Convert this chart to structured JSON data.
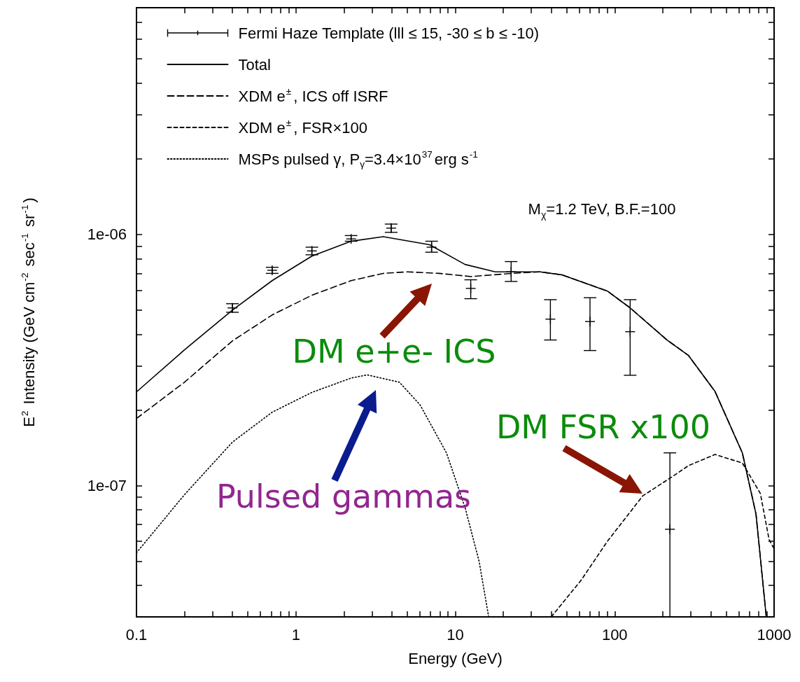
{
  "chart_data": {
    "type": "line",
    "xlabel": "Energy (GeV)",
    "ylabel": "E$^{2}$ Intensity (GeV cm$^{-2}$ sec$^{-1}$ sr$^{-1}$)",
    "log": "xy",
    "grid": false,
    "legend": "top left",
    "xlim": [
      0.1,
      1000
    ],
    "xticks": [
      0.1,
      {
        "value": 0.2,
        "label": null
      },
      {
        "value": 0.3,
        "label": null
      },
      {
        "value": 0.4,
        "label": null
      },
      {
        "value": 0.5,
        "label": null
      },
      {
        "value": 0.6,
        "label": null
      },
      {
        "value": 0.7,
        "label": null
      },
      {
        "value": 0.8,
        "label": null
      },
      {
        "value": 0.9,
        "label": null
      },
      1,
      {
        "value": 2,
        "label": null
      },
      {
        "value": 3,
        "label": null
      },
      {
        "value": 4,
        "label": null
      },
      {
        "value": 5,
        "label": null
      },
      {
        "value": 6,
        "label": null
      },
      {
        "value": 7,
        "label": null
      },
      {
        "value": 8,
        "label": null
      },
      {
        "value": 9,
        "label": null
      },
      10,
      {
        "value": 20,
        "label": null
      },
      {
        "value": 30,
        "label": null
      },
      {
        "value": 40,
        "label": null
      },
      {
        "value": 50,
        "label": null
      },
      {
        "value": 60,
        "label": null
      },
      {
        "value": 70,
        "label": null
      },
      {
        "value": 80,
        "label": null
      },
      {
        "value": 90,
        "label": null
      },
      100,
      {
        "value": 200,
        "label": null
      },
      {
        "value": 300,
        "label": null
      },
      {
        "value": 400,
        "label": null
      },
      {
        "value": 500,
        "label": null
      },
      {
        "value": 600,
        "label": null
      },
      {
        "value": 700,
        "label": null
      },
      {
        "value": 800,
        "label": null
      },
      {
        "value": 900,
        "label": null
      },
      1000
    ],
    "ylim": [
      3e-08,
      8e-06
    ],
    "yticks": [
      {
        "value": 4e-08,
        "label": null
      },
      {
        "value": 5e-08,
        "label": null
      },
      {
        "value": 6e-08,
        "label": null
      },
      {
        "value": 7e-08,
        "label": null
      },
      {
        "value": 8e-08,
        "label": null
      },
      {
        "value": 9e-08,
        "label": null
      },
      {
        "value": 1e-07,
        "label": "1e-07"
      },
      {
        "value": 2e-07,
        "label": null
      },
      {
        "value": 3e-07,
        "label": null
      },
      {
        "value": 4e-07,
        "label": null
      },
      {
        "value": 5e-07,
        "label": null
      },
      {
        "value": 6e-07,
        "label": null
      },
      {
        "value": 7e-07,
        "label": null
      },
      {
        "value": 8e-07,
        "label": null
      },
      {
        "value": 9e-07,
        "label": null
      },
      {
        "value": 1e-06,
        "label": "1e-06"
      },
      {
        "value": 2e-06,
        "label": null
      },
      {
        "value": 3e-06,
        "label": null
      },
      {
        "value": 4e-06,
        "label": null
      },
      {
        "value": 5e-06,
        "label": null
      },
      {
        "value": 6e-06,
        "label": null
      },
      {
        "value": 7e-06,
        "label": null
      }
    ],
    "series": [
      {
        "name": "Fermi Haze Template (lll ≤ 15, -30 ≤ b ≤ -10)",
        "type": "scatter",
        "color": "#000000",
        "marker": "cross",
        "x": [
          0.4,
          0.71,
          1.26,
          2.22,
          3.96,
          7.1,
          12.5,
          22.4,
          39.5,
          70,
          125,
          222
        ],
        "values": [
          5.1e-07,
          7.2e-07,
          8.6e-07,
          9.6e-07,
          1.06e-06,
          8.9e-07,
          6.1e-07,
          7.1e-07,
          4.6e-07,
          4.5e-07,
          4.1e-07,
          6.7e-08
        ],
        "errors": [
          [
            4.9e-07,
            5.3e-07
          ],
          [
            7e-07,
            7.4e-07
          ],
          [
            8.3e-07,
            8.9e-07
          ],
          [
            9.4e-07,
            9.9e-07
          ],
          [
            1.02e-06,
            1.1e-06
          ],
          [
            8.5e-07,
            9.4e-07
          ],
          [
            5.55e-07,
            6.6e-07
          ],
          [
            6.5e-07,
            7.8e-07
          ],
          [
            3.8e-07,
            5.5e-07
          ],
          [
            3.45e-07,
            5.6e-07
          ],
          [
            2.75e-07,
            5.5e-07
          ],
          [
            3e-08,
            1.35e-07
          ]
        ]
      },
      {
        "name": "Total",
        "color": "#000000",
        "line_style": "solid",
        "x": [
          0.1,
          0.2,
          0.4,
          0.71,
          1.26,
          2.22,
          3.53,
          6.9,
          11.5,
          17.8,
          34,
          47,
          90,
          125,
          213,
          290,
          426,
          632,
          770,
          893
        ],
        "values": [
          2.36e-07,
          3.47e-07,
          5e-07,
          6.55e-07,
          8.2e-07,
          9.4e-07,
          9.8e-07,
          9.1e-07,
          7.6e-07,
          7.1e-07,
          7.1e-07,
          6.9e-07,
          5.95e-07,
          5.1e-07,
          3.8e-07,
          3.3e-07,
          2.37e-07,
          1.35e-07,
          7.7e-08,
          3e-08
        ]
      },
      {
        "name": "XDM e$^{±}$, ICS off ISRF",
        "color": "#000000",
        "line_style": "dashed",
        "x": [
          0.1,
          0.2,
          0.4,
          0.71,
          1.26,
          2.22,
          3.53,
          5.0,
          7.9,
          12.5,
          17,
          22.4,
          34,
          47,
          90,
          125,
          213,
          290,
          426,
          632,
          770,
          893
        ],
        "values": [
          1.85e-07,
          2.58e-07,
          3.77e-07,
          4.78e-07,
          5.73e-07,
          6.55e-07,
          7e-07,
          7.1e-07,
          7e-07,
          6.8e-07,
          6.9e-07,
          7e-07,
          7.1e-07,
          6.9e-07,
          5.95e-07,
          5.1e-07,
          3.8e-07,
          3.3e-07,
          2.37e-07,
          1.35e-07,
          7.7e-08,
          3e-08
        ]
      },
      {
        "name": "XDM e$^{±}$, FSR×100",
        "color": "#000000",
        "line_style": "dashed",
        "x": [
          40,
          61.6,
          90,
          150,
          222,
          290,
          426,
          632,
          820,
          930,
          1000
        ],
        "values": [
          3e-08,
          4.2e-08,
          6e-08,
          9.1e-08,
          1.07e-07,
          1.2e-07,
          1.33e-07,
          1.23e-07,
          9.3e-08,
          6.1e-08,
          5.6e-08
        ]
      },
      {
        "name": "MSPs pulsed γ, P$_{γ}$=3.4×10$^{37}$erg s$^{-1}$",
        "color": "#000000",
        "line_style": "dotted",
        "x": [
          0.1,
          0.2,
          0.4,
          0.71,
          1.26,
          2.22,
          2.8,
          4.46,
          6.0,
          8.8,
          11.5,
          14.1,
          16.2
        ],
        "values": [
          5.4e-08,
          9.2e-08,
          1.49e-07,
          1.96e-07,
          2.35e-07,
          2.68e-07,
          2.76e-07,
          2.58e-07,
          2.1e-07,
          1.35e-07,
          8.2e-08,
          5e-08,
          3e-08
        ]
      }
    ],
    "annotations": [
      "M$_{χ}$=1.2 TeV, B.F.=100",
      "DM e+e- ICS",
      "Pulsed gammas",
      "DM FSR x100"
    ]
  }
}
